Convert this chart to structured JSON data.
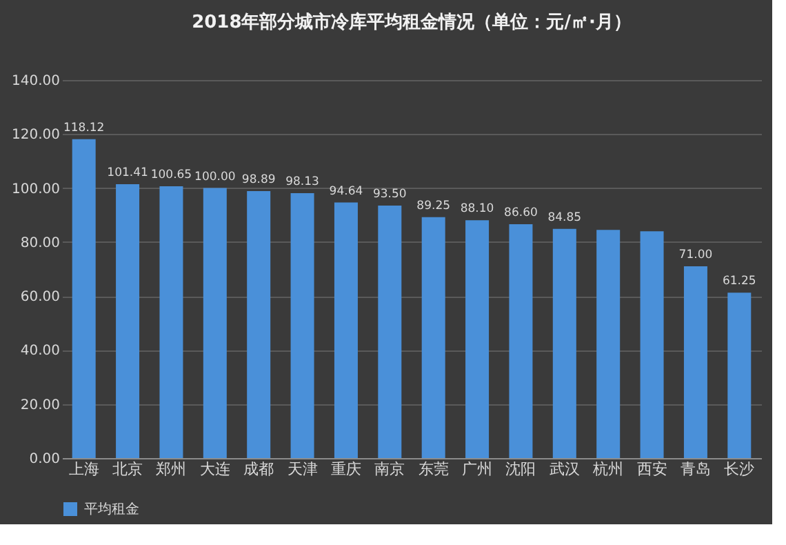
{
  "chart_data": {
    "type": "bar",
    "title": "2018年部分城市冷库平均租金情况（单位：元/㎡·月）",
    "categories": [
      "上海",
      "北京",
      "郑州",
      "大连",
      "成都",
      "天津",
      "重庆",
      "南京",
      "东莞",
      "广州",
      "沈阳",
      "武汉",
      "杭州",
      "西安",
      "青岛",
      "长沙"
    ],
    "series": [
      {
        "name": "平均租金",
        "color": "#4a90d9",
        "values": [
          118.12,
          101.41,
          100.65,
          100.0,
          98.89,
          98.13,
          94.64,
          93.5,
          89.25,
          88.1,
          86.6,
          84.85,
          84.5,
          84.0,
          71.0,
          61.25
        ]
      }
    ],
    "value_labels": [
      "118.12",
      "101.41",
      "100.65",
      "100.00",
      "98.89",
      "98.13",
      "94.64",
      "93.50",
      "89.25",
      "88.10",
      "86.60",
      "84.85",
      null,
      null,
      "71.00",
      "61.25"
    ],
    "ylim": [
      0,
      140
    ],
    "yticks": [
      {
        "value": 0,
        "label": "0.00"
      },
      {
        "value": 20,
        "label": "20.00"
      },
      {
        "value": 40,
        "label": "40.00"
      },
      {
        "value": 60,
        "label": "60.00"
      },
      {
        "value": 80,
        "label": "80.00"
      },
      {
        "value": 100,
        "label": "100.00"
      },
      {
        "value": 120,
        "label": "120.00"
      },
      {
        "value": 140,
        "label": "140.00"
      }
    ],
    "grid": "y",
    "legend": "bottom"
  }
}
